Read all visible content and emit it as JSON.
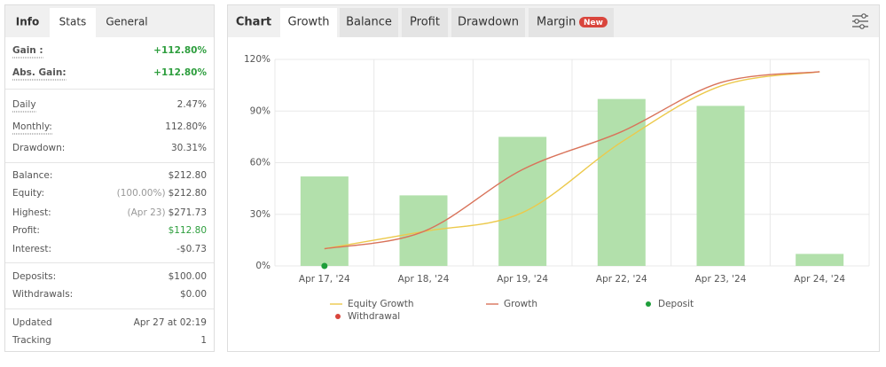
{
  "stats_panel": {
    "tabs": [
      "Info",
      "Stats",
      "General"
    ],
    "sections": [
      [
        {
          "label": "Gain :",
          "value": "+112.80%",
          "color": "#2e9e3e"
        },
        {
          "label": "Abs. Gain:",
          "value": "+112.80%",
          "color": "#2e9e3e"
        }
      ],
      [
        {
          "label": "Daily",
          "value": "2.47%"
        },
        {
          "label": "Monthly:",
          "value": "112.80%"
        },
        {
          "label": "Drawdown:",
          "value": "30.31%"
        }
      ],
      [
        {
          "label": "Balance:",
          "value": "$212.80"
        },
        {
          "label": "Equity:",
          "note": "(100.00%)",
          "value": "$212.80"
        },
        {
          "label": "Highest:",
          "note": "(Apr 23)",
          "value": "$271.73"
        },
        {
          "label": "Profit:",
          "value": "$112.80",
          "color": "#2e9e3e"
        },
        {
          "label": "Interest:",
          "value": "-$0.73"
        }
      ],
      [
        {
          "label": "Deposits:",
          "value": "$100.00"
        },
        {
          "label": "Withdrawals:",
          "value": "$0.00"
        }
      ],
      [
        {
          "label": "Updated",
          "value": "Apr 27 at 02:19"
        },
        {
          "label": "Tracking",
          "value": "1"
        }
      ]
    ]
  },
  "chart_tabs": {
    "tabs": [
      "Chart",
      "Growth",
      "Balance",
      "Profit",
      "Drawdown",
      "Margin"
    ],
    "badge": "New"
  },
  "chart_data": {
    "type": "bar-line",
    "categories": [
      "Apr 17, '24",
      "Apr 18, '24",
      "Apr 19, '24",
      "Apr 22, '24",
      "Apr 23, '24",
      "Apr 24, '24"
    ],
    "bars": {
      "color": "#b2e0ab",
      "values": [
        52,
        41,
        75,
        97,
        93,
        7
      ]
    },
    "series": [
      {
        "name": "Equity Growth",
        "color": "#ecc94b",
        "values": [
          10,
          20,
          31,
          72,
          104.5,
          112.8
        ]
      },
      {
        "name": "Growth",
        "color": "#d9735a",
        "values": [
          10,
          20,
          56,
          78,
          106.5,
          112.8
        ]
      }
    ],
    "markers": [
      {
        "name": "Deposit",
        "color": "#1e9e3a",
        "values": [
          0,
          null,
          null,
          null,
          null,
          null
        ]
      },
      {
        "name": "Withdrawal",
        "color": "#d9453c",
        "values": [
          null,
          null,
          null,
          null,
          null,
          null
        ]
      }
    ],
    "ylim": [
      0,
      120
    ],
    "yticks": [
      {
        "value": 0,
        "label": "0%"
      },
      {
        "value": 30,
        "label": "30%"
      },
      {
        "value": 60,
        "label": "60%"
      },
      {
        "value": 90,
        "label": "90%"
      },
      {
        "value": 120,
        "label": "120%"
      }
    ],
    "grid": true
  }
}
